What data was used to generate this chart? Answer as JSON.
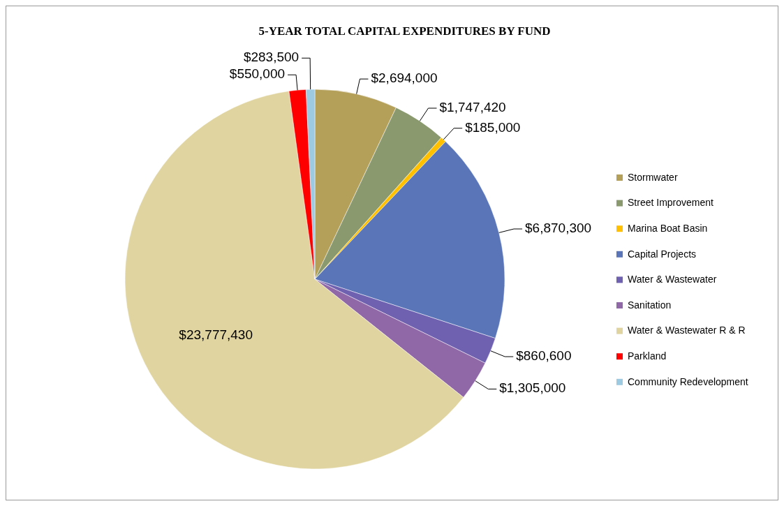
{
  "chart_data": {
    "type": "pie",
    "title": "5-YEAR  TOTAL CAPITAL  EXPENDITURES   BY FUND",
    "categories": [
      "Stormwater",
      "Street Improvement",
      "Marina Boat Basin",
      "Capital Projects",
      "Water & Wastewater",
      "Sanitation",
      "Water & Wastewater R & R",
      "Parkland",
      "Community Redevelopment"
    ],
    "values": [
      2694000,
      1747420,
      185000,
      6870300,
      860600,
      1305000,
      23777430,
      550000,
      283500
    ],
    "colors": [
      "#b5a05a",
      "#8a9a6e",
      "#ffc000",
      "#5a76b8",
      "#7060b0",
      "#9068a8",
      "#e0d4a0",
      "#ff0000",
      "#9ecae1"
    ],
    "value_labels": [
      "$2,694,000",
      "$1,747,420",
      "$185,000",
      "$6,870,300",
      "$860,600",
      "$1,305,000",
      "$23,777,430",
      "$550,000",
      "$283,500"
    ],
    "legend": "right"
  }
}
